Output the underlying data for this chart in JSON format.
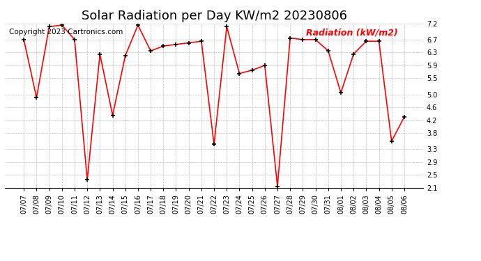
{
  "title": "Solar Radiation per Day KW/m2 20230806",
  "copyright": "Copyright 2023 Cartronics.com",
  "legend_label": "Radiation (kW/m2)",
  "dates": [
    "07/07",
    "07/08",
    "07/09",
    "07/10",
    "07/11",
    "07/12",
    "07/13",
    "07/14",
    "07/15",
    "07/16",
    "07/17",
    "07/18",
    "07/19",
    "07/20",
    "07/21",
    "07/22",
    "07/23",
    "07/24",
    "07/25",
    "07/26",
    "07/27",
    "07/28",
    "07/29",
    "07/30",
    "07/31",
    "08/01",
    "08/02",
    "08/03",
    "08/04",
    "08/05",
    "08/06"
  ],
  "values": [
    6.7,
    4.9,
    7.1,
    7.15,
    6.7,
    2.35,
    6.25,
    4.35,
    6.2,
    7.15,
    6.35,
    6.5,
    6.55,
    6.6,
    6.65,
    3.45,
    7.1,
    5.65,
    5.75,
    5.9,
    2.15,
    6.75,
    6.7,
    6.7,
    6.35,
    5.05,
    6.25,
    6.65,
    6.65,
    3.55,
    4.3
  ],
  "line_color": "red",
  "marker_color": "black",
  "background_color": "white",
  "grid_color": "#bbbbbb",
  "ylim": [
    2.1,
    7.2
  ],
  "yticks": [
    2.1,
    2.5,
    2.9,
    3.3,
    3.8,
    4.2,
    4.6,
    5.0,
    5.5,
    5.9,
    6.3,
    6.7,
    7.2
  ],
  "title_fontsize": 13,
  "copyright_fontsize": 7.5,
  "legend_fontsize": 9,
  "tick_fontsize": 7
}
